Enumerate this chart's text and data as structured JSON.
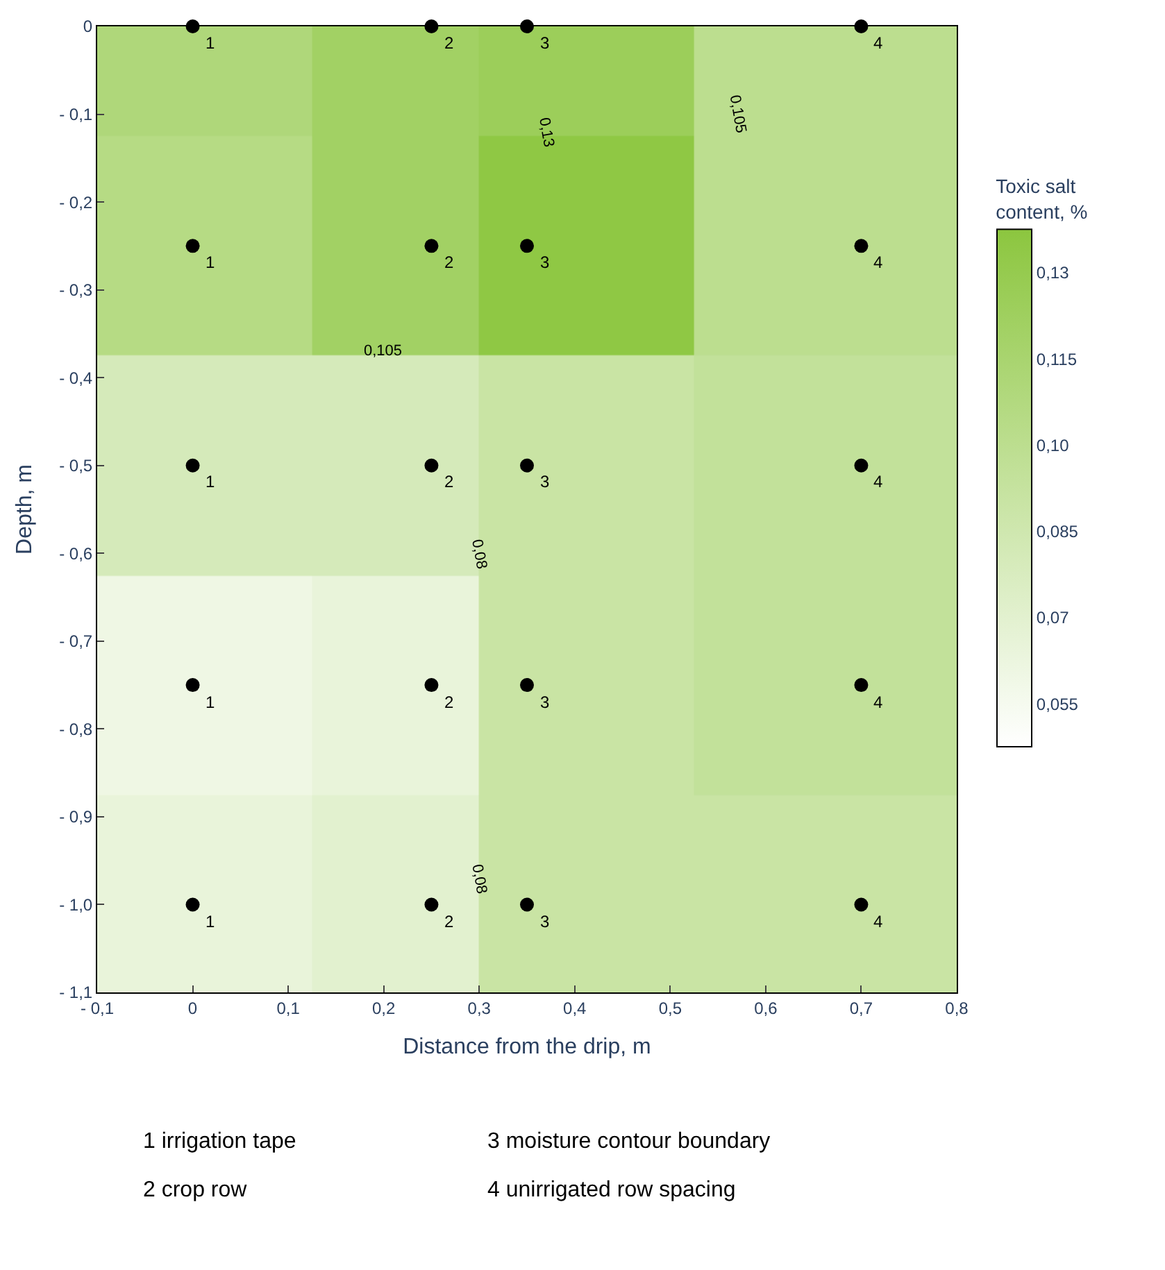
{
  "chart_data": {
    "type": "heatmap",
    "xlabel": "Distance from the drip, m",
    "ylabel": "Depth, m",
    "clabel": "Toxic salt content, %",
    "x": [
      0,
      0.25,
      0.35,
      0.7
    ],
    "y": [
      0,
      -0.25,
      -0.5,
      -0.75,
      -1.0
    ],
    "cells": [
      [
        0.11,
        0.12,
        0.125,
        0.1
      ],
      [
        0.105,
        0.12,
        0.135,
        0.1
      ],
      [
        0.08,
        0.08,
        0.09,
        0.095
      ],
      [
        0.06,
        0.065,
        0.09,
        0.095
      ],
      [
        0.065,
        0.07,
        0.09,
        0.09
      ]
    ],
    "clim": [
      0.0475,
      0.1375
    ],
    "cticks": [
      {
        "value": 0.055,
        "label": "0,055"
      },
      {
        "value": 0.07,
        "label": "0,07"
      },
      {
        "value": 0.085,
        "label": "0,085"
      },
      {
        "value": 0.1,
        "label": "0,10"
      },
      {
        "value": 0.115,
        "label": "0,115"
      },
      {
        "value": 0.13,
        "label": "0,13"
      }
    ],
    "xlim": [
      -0.1,
      0.8
    ],
    "xticks": [
      {
        "value": -0.1,
        "label": "- 0,1"
      },
      0,
      {
        "value": 0.1,
        "label": "0,1"
      },
      {
        "value": 0.2,
        "label": "0,2"
      },
      {
        "value": 0.3,
        "label": "0,3"
      },
      {
        "value": 0.4,
        "label": "0,4"
      },
      {
        "value": 0.5,
        "label": "0,5"
      },
      {
        "value": 0.6,
        "label": "0,6"
      },
      {
        "value": 0.7,
        "label": "0,7"
      },
      {
        "value": 0.8,
        "label": "0,8"
      }
    ],
    "ylim": [
      -1.1,
      0
    ],
    "yticks": [
      0,
      {
        "value": -0.1,
        "label": "- 0,1"
      },
      {
        "value": -0.2,
        "label": "- 0,2"
      },
      {
        "value": -0.3,
        "label": "- 0,3"
      },
      {
        "value": -0.4,
        "label": "- 0,4"
      },
      {
        "value": -0.5,
        "label": "- 0,5"
      },
      {
        "value": -0.6,
        "label": "- 0,6"
      },
      {
        "value": -0.7,
        "label": "- 0,7"
      },
      {
        "value": -0.8,
        "label": "- 0,8"
      },
      {
        "value": -0.9,
        "label": "- 0,9"
      },
      {
        "value": -1.0,
        "label": "- 1,0"
      },
      {
        "value": -1.1,
        "label": "- 1,1"
      }
    ],
    "series": [
      {
        "type": "scatter",
        "color": "#000000",
        "marker": "circle",
        "x": [
          0,
          0.25,
          0.35,
          0.7,
          0,
          0.25,
          0.35,
          0.7,
          0,
          0.25,
          0.35,
          0.7,
          0,
          0.25,
          0.35,
          0.7,
          0,
          0.25,
          0.35,
          0.7
        ],
        "values": [
          0,
          0,
          0,
          0,
          -0.25,
          -0.25,
          -0.25,
          -0.25,
          -0.5,
          -0.5,
          -0.5,
          -0.5,
          -0.75,
          -0.75,
          -0.75,
          -0.75,
          -1.0,
          -1.0,
          -1.0,
          -1.0
        ]
      }
    ],
    "annotations": [
      {
        "text": "1",
        "x": 0,
        "y": 0
      },
      {
        "text": "2",
        "x": 0.25,
        "y": 0
      },
      {
        "text": "3",
        "x": 0.35,
        "y": 0
      },
      {
        "text": "4",
        "x": 0.7,
        "y": 0
      },
      {
        "text": "1",
        "x": 0,
        "y": -0.25
      },
      {
        "text": "2",
        "x": 0.25,
        "y": -0.25
      },
      {
        "text": "3",
        "x": 0.35,
        "y": -0.25
      },
      {
        "text": "4",
        "x": 0.7,
        "y": -0.25
      },
      {
        "text": "1",
        "x": 0,
        "y": -0.5
      },
      {
        "text": "2",
        "x": 0.25,
        "y": -0.5
      },
      {
        "text": "3",
        "x": 0.35,
        "y": -0.5
      },
      {
        "text": "4",
        "x": 0.7,
        "y": -0.5
      },
      {
        "text": "1",
        "x": 0,
        "y": -0.75
      },
      {
        "text": "2",
        "x": 0.25,
        "y": -0.75
      },
      {
        "text": "3",
        "x": 0.35,
        "y": -0.75
      },
      {
        "text": "4",
        "x": 0.7,
        "y": -0.75
      },
      {
        "text": "1",
        "x": 0,
        "y": -1.0
      },
      {
        "text": "2",
        "x": 0.25,
        "y": -1.0
      },
      {
        "text": "3",
        "x": 0.35,
        "y": -1.0
      },
      {
        "text": "4",
        "x": 0.7,
        "y": -1.0
      },
      "0,13",
      "0,105",
      "0,105",
      "0,08",
      "0,08",
      "1 irrigation tape",
      "2 crop row",
      "3 moisture contour boundary",
      "4 unirrigated row spacing"
    ]
  }
}
